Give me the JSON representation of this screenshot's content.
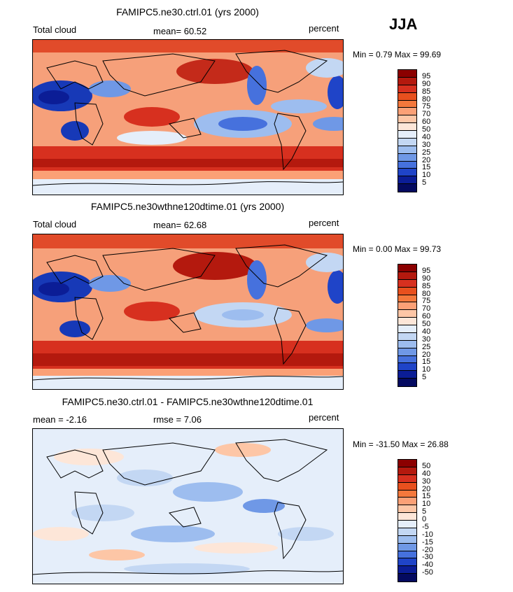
{
  "season": "JJA",
  "panels": [
    {
      "title": "FAMIPC5.ne30.ctrl.01 (yrs 2000)",
      "left_label": "Total cloud",
      "mid_label": "mean=  60.52",
      "right_label": "percent",
      "minmax": "Min =    0.79  Max =   99.69",
      "levels": [
        "95",
        "90",
        "85",
        "80",
        "75",
        "70",
        "60",
        "50",
        "40",
        "30",
        "25",
        "20",
        "15",
        "10",
        "5"
      ],
      "colors": [
        "#8b0000",
        "#b4190e",
        "#d7301f",
        "#e8501e",
        "#f4783c",
        "#fba076",
        "#fdc6a6",
        "#fde6d8",
        "#e5eefa",
        "#c3d7f3",
        "#9dbdef",
        "#6f98e6",
        "#4671dd",
        "#1f44c8",
        "#0b1d96",
        "#040a60"
      ]
    },
    {
      "title": "FAMIPC5.ne30wthne120dtime.01 (yrs 2000)",
      "left_label": "Total cloud",
      "mid_label": "mean=  62.68",
      "right_label": "percent",
      "minmax": "Min =    0.00  Max =   99.73",
      "levels": [
        "95",
        "90",
        "85",
        "80",
        "75",
        "70",
        "60",
        "50",
        "40",
        "30",
        "25",
        "20",
        "15",
        "10",
        "5"
      ],
      "colors": [
        "#8b0000",
        "#b4190e",
        "#d7301f",
        "#e8501e",
        "#f4783c",
        "#fba076",
        "#fdc6a6",
        "#fde6d8",
        "#e5eefa",
        "#c3d7f3",
        "#9dbdef",
        "#6f98e6",
        "#4671dd",
        "#1f44c8",
        "#0b1d96",
        "#040a60"
      ]
    },
    {
      "title": "FAMIPC5.ne30.ctrl.01 - FAMIPC5.ne30wthne120dtime.01",
      "left_label": "mean =   -2.16",
      "mid_label": "rmse =    7.06",
      "right_label": "percent",
      "minmax": "Min = -31.50  Max =   26.88",
      "levels": [
        "50",
        "40",
        "30",
        "20",
        "15",
        "10",
        "5",
        "0",
        "-5",
        "-10",
        "-15",
        "-20",
        "-30",
        "-40",
        "-50"
      ],
      "colors": [
        "#8b0000",
        "#b4190e",
        "#d7301f",
        "#e8501e",
        "#f4783c",
        "#fba076",
        "#fdc6a6",
        "#fde6d8",
        "#e5eefa",
        "#c3d7f3",
        "#9dbdef",
        "#6f98e6",
        "#4671dd",
        "#1f44c8",
        "#0b1d96",
        "#040a60"
      ]
    }
  ]
}
